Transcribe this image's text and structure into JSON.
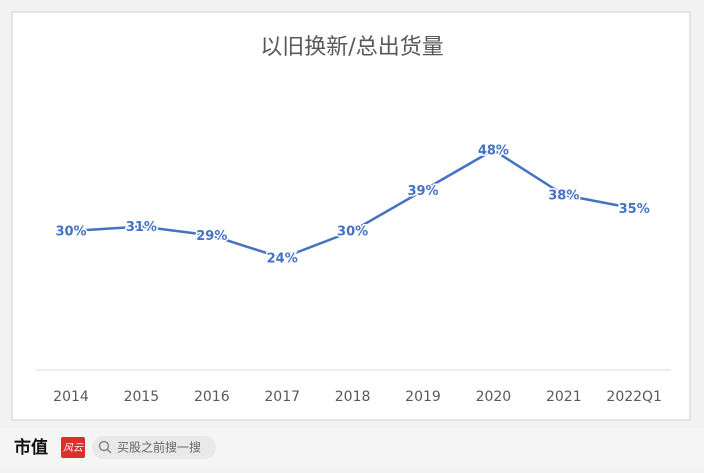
{
  "chart_data": {
    "type": "line",
    "title": "以旧换新/总出货量",
    "categories": [
      "2014",
      "2015",
      "2016",
      "2017",
      "2018",
      "2019",
      "2020",
      "2021",
      "2022Q1"
    ],
    "series": [
      {
        "name": "以旧换新/总出货量",
        "color": "#4472c4",
        "values": [
          30,
          31,
          29,
          24,
          30,
          39,
          48,
          38,
          35
        ],
        "value_labels": [
          "30%",
          "31%",
          "29%",
          "24%",
          "30%",
          "39%",
          "48%",
          "38%",
          "35%"
        ]
      }
    ]
  },
  "footer": {
    "brand": "市值",
    "badge": "风云",
    "search": "买股之前搜一搜"
  }
}
